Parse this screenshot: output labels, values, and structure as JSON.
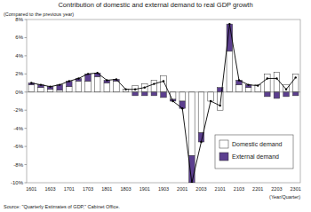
{
  "chart_data": {
    "type": "bar",
    "title": "Contribution of domestic and external demand to real GDP growth",
    "subtitle": "(Compared to the previous year)",
    "x_label": "(Year/Quarter)",
    "source": "Source: \"Quarterly Estimates of GDP,\" Cabinet Office.",
    "categories": [
      "1601",
      null,
      "1603",
      null,
      "1701",
      null,
      "1703",
      null,
      "1801",
      null,
      "1803",
      null,
      "1901",
      null,
      "1903",
      null,
      "2001",
      null,
      "2003",
      null,
      "2101",
      null,
      "2103",
      null,
      "2201",
      null,
      "2203",
      null,
      "2301"
    ],
    "stacked": true,
    "grid": false,
    "legend": "lower right",
    "ylim": [
      -10,
      8
    ],
    "yticks": [
      {
        "value": -10,
        "label": "-10%"
      },
      {
        "value": -8,
        "label": "-8%"
      },
      {
        "value": -6,
        "label": "-6%"
      },
      {
        "value": -4,
        "label": "-4%"
      },
      {
        "value": -2,
        "label": "-2%"
      },
      {
        "value": 0,
        "label": "0%"
      },
      {
        "value": 2,
        "label": "2%"
      },
      {
        "value": 4,
        "label": "4%"
      },
      {
        "value": 6,
        "label": "6%"
      },
      {
        "value": 8,
        "label": "8%"
      }
    ],
    "series": [
      {
        "name": "Domestic demand",
        "type": "bar",
        "color": "#ffffff",
        "values": [
          0.8,
          0.5,
          0.3,
          0.2,
          0.6,
          1.2,
          1.2,
          1.7,
          1.0,
          1.2,
          0.3,
          0.7,
          0.9,
          1.3,
          1.8,
          -0.8,
          -1.0,
          -7.0,
          -4.5,
          -1.0,
          -2.0,
          4.5,
          0.8,
          0.5,
          0.8,
          2.0,
          2.2,
          0.8,
          2.0
        ]
      },
      {
        "name": "External demand",
        "type": "bar",
        "color": "#5c3f8f",
        "values": [
          0.2,
          0.3,
          0.3,
          0.6,
          0.6,
          0.3,
          0.8,
          0.4,
          0.3,
          0.2,
          0.0,
          -0.4,
          -0.4,
          -0.4,
          -0.6,
          -0.2,
          -0.8,
          -3.0,
          -1.0,
          0.0,
          0.5,
          3.0,
          0.5,
          0.3,
          0.0,
          -0.5,
          -0.7,
          -0.5,
          -0.4
        ]
      },
      {
        "type": "line",
        "color": "#000000",
        "marker": "circle",
        "line_style": "solid",
        "values": [
          1.0,
          0.8,
          0.6,
          0.8,
          1.2,
          1.5,
          2.0,
          2.1,
          1.3,
          1.4,
          0.3,
          0.3,
          0.5,
          0.9,
          1.2,
          -1.0,
          -1.8,
          -10.0,
          -5.5,
          -1.0,
          -1.5,
          7.5,
          1.3,
          0.8,
          0.7,
          1.5,
          1.5,
          0.3,
          1.6
        ]
      }
    ]
  }
}
